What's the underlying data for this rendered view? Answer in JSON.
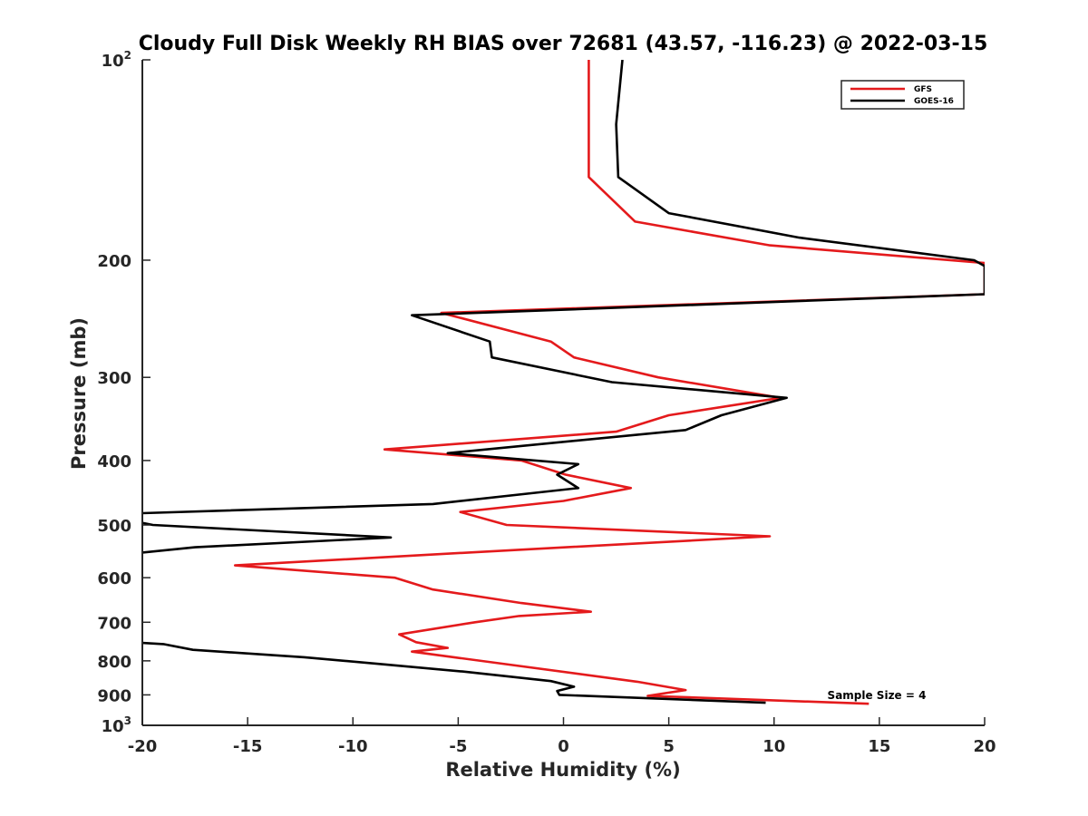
{
  "chart_data": {
    "type": "line",
    "title": "Cloudy Full Disk Weekly RH BIAS over 72681 (43.57, -116.23) @ 2022-03-15",
    "xlabel": "Relative Humidity (%)",
    "ylabel": "Pressure (mb)",
    "xlim": [
      -20,
      20
    ],
    "ylim": [
      100,
      1000
    ],
    "y_scale": "log",
    "y_reversed": true,
    "grid": false,
    "legend_position": "top-right",
    "x_ticks": [
      "-20",
      "-15",
      "-10",
      "-5",
      "0",
      "5",
      "10",
      "15",
      "20"
    ],
    "y_ticks": [
      {
        "base": "10",
        "exp": "2",
        "value": 100
      },
      {
        "base": "200",
        "exp": "",
        "value": 200
      },
      {
        "base": "300",
        "exp": "",
        "value": 300
      },
      {
        "base": "400",
        "exp": "",
        "value": 400
      },
      {
        "base": "500",
        "exp": "",
        "value": 500
      },
      {
        "base": "600",
        "exp": "",
        "value": 600
      },
      {
        "base": "700",
        "exp": "",
        "value": 700
      },
      {
        "base": "800",
        "exp": "",
        "value": 800
      },
      {
        "base": "900",
        "exp": "",
        "value": 900
      },
      {
        "base": "10",
        "exp": "3",
        "value": 1000
      }
    ],
    "annotation": "Sample Size = 4",
    "series": [
      {
        "name": "GFS",
        "color": "#e41a1c",
        "points": [
          [
            1.2,
            100
          ],
          [
            1.2,
            125
          ],
          [
            1.2,
            150
          ],
          [
            3.4,
            175
          ],
          [
            9.8,
            190
          ],
          [
            20.0,
            202
          ],
          [
            20.0,
            225
          ],
          [
            -5.8,
            240
          ],
          [
            -0.6,
            265
          ],
          [
            0.5,
            280
          ],
          [
            4.5,
            300
          ],
          [
            10.3,
            322
          ],
          [
            5.0,
            342
          ],
          [
            2.5,
            362
          ],
          [
            -8.5,
            385
          ],
          [
            -2.0,
            400
          ],
          [
            0.1,
            420
          ],
          [
            3.2,
            440
          ],
          [
            0.0,
            460
          ],
          [
            -4.9,
            478
          ],
          [
            -2.7,
            500
          ],
          [
            9.8,
            520
          ],
          [
            -4.5,
            550
          ],
          [
            -15.6,
            575
          ],
          [
            -8.0,
            600
          ],
          [
            -6.2,
            625
          ],
          [
            -2.0,
            655
          ],
          [
            1.3,
            675
          ],
          [
            -2.1,
            685
          ],
          [
            -4.2,
            700
          ],
          [
            -7.8,
            730
          ],
          [
            -7.0,
            750
          ],
          [
            -5.5,
            765
          ],
          [
            -7.2,
            775
          ],
          [
            -5.2,
            790
          ],
          [
            3.5,
            860
          ],
          [
            5.8,
            885
          ],
          [
            4.0,
            903
          ],
          [
            14.5,
            928
          ]
        ]
      },
      {
        "name": "GOES-16",
        "color": "#000000",
        "points": [
          [
            2.8,
            100
          ],
          [
            2.5,
            125
          ],
          [
            2.6,
            150
          ],
          [
            5.0,
            170
          ],
          [
            11.2,
            185
          ],
          [
            19.5,
            200
          ],
          [
            20.0,
            204
          ],
          [
            20.0,
            225
          ],
          [
            -7.2,
            242
          ],
          [
            -3.5,
            265
          ],
          [
            -3.4,
            280
          ],
          [
            2.3,
            305
          ],
          [
            10.6,
            322
          ],
          [
            7.5,
            342
          ],
          [
            5.8,
            360
          ],
          [
            -5.5,
            390
          ],
          [
            0.7,
            405
          ],
          [
            -0.3,
            420
          ],
          [
            0.7,
            440
          ],
          [
            -6.2,
            465
          ],
          [
            -20.0,
            480
          ],
          [
            -20.2,
            495
          ],
          [
            -19.5,
            500
          ],
          [
            -8.2,
            522
          ],
          [
            -17.5,
            540
          ],
          [
            -20.0,
            550
          ]
        ]
      },
      {
        "name": "GOES-16",
        "color": "#000000",
        "points": [
          [
            -20.0,
            752
          ],
          [
            -19.0,
            755
          ],
          [
            -17.6,
            770
          ],
          [
            -12.3,
            790
          ],
          [
            -8.5,
            810
          ],
          [
            -4.8,
            830
          ],
          [
            -0.6,
            858
          ],
          [
            0.5,
            875
          ],
          [
            -0.3,
            888
          ],
          [
            -0.2,
            900
          ],
          [
            9.6,
            925
          ]
        ]
      }
    ]
  }
}
